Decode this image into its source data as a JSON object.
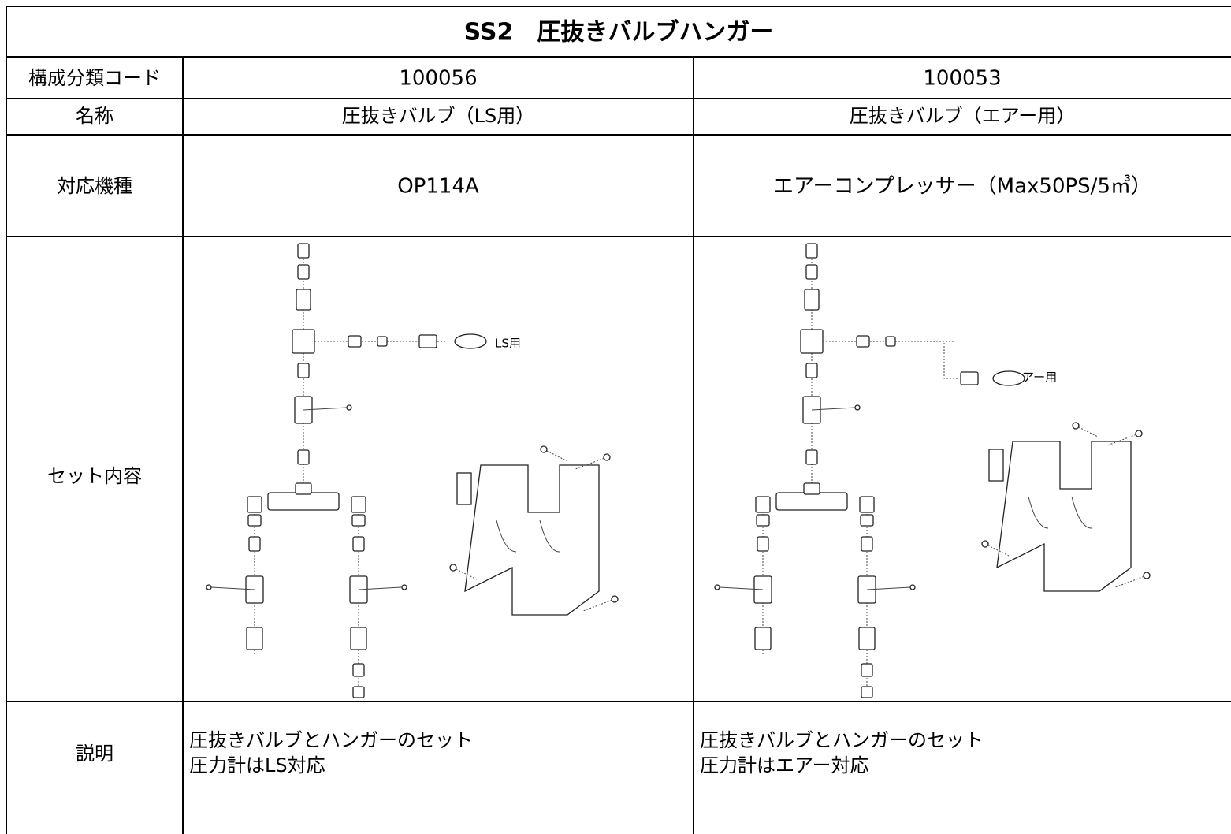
{
  "header": {
    "title": "SS2　圧抜きバルブハンガー"
  },
  "table": {
    "rows": [
      {
        "label": "構成分類コード",
        "cells": [
          "100056",
          "100053"
        ]
      },
      {
        "label": "名称",
        "cells": [
          "圧抜きバルブ（LS用）",
          "圧抜きバルブ（エアー用）"
        ]
      },
      {
        "label": "対応機種",
        "cells": [
          "OP114A",
          "エアーコンプレッサー（Max50PS/5㎥）"
        ]
      },
      {
        "label": "セット内容",
        "cells": [
          {
            "callout": "LS用"
          },
          {
            "callout": "エアー用"
          }
        ]
      },
      {
        "label": "説明",
        "cells": [
          [
            "圧抜きバルブとハンガーのセット",
            "圧力計はLS対応"
          ],
          [
            "圧抜きバルブとハンガーのセット",
            "圧力計はエアー対応"
          ]
        ]
      }
    ]
  }
}
